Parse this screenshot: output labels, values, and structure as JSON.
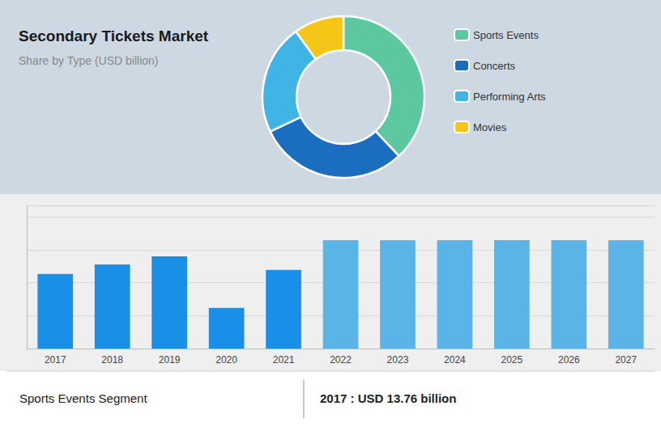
{
  "chart_data": [
    {
      "type": "pie",
      "title": "Secondary Tickets Market",
      "subtitle": "Share by Type (USD billion)",
      "categories": [
        "Sports Events",
        "Concerts",
        "Performing Arts",
        "Movies"
      ],
      "values": [
        38,
        30,
        22,
        10
      ],
      "colors": [
        "#5dc8a0",
        "#1a6dbf",
        "#41b4e6",
        "#f5c518"
      ],
      "legend": "right"
    },
    {
      "type": "bar",
      "categories": [
        "2017",
        "2018",
        "2019",
        "2020",
        "2021",
        "2022",
        "2023",
        "2024",
        "2025",
        "2026",
        "2027"
      ],
      "values": [
        13.76,
        15.5,
        17.0,
        7.5,
        14.5,
        20.0,
        20.0,
        20.0,
        20.0,
        20.0,
        20.0
      ],
      "colors": [
        "#1a8fe8",
        "#1a8fe8",
        "#1a8fe8",
        "#1a8fe8",
        "#1a8fe8",
        "#5ab4e8",
        "#5ab4e8",
        "#5ab4e8",
        "#5ab4e8",
        "#5ab4e8",
        "#5ab4e8"
      ],
      "ylim": [
        0,
        26.4
      ],
      "yticks": [
        0,
        6.072,
        12.144,
        18.216,
        24.288
      ],
      "grid": true,
      "tick_labels": "x",
      "annotations": [
        "Sports Events Segment",
        "2017 : USD 13.76 billion"
      ]
    }
  ]
}
